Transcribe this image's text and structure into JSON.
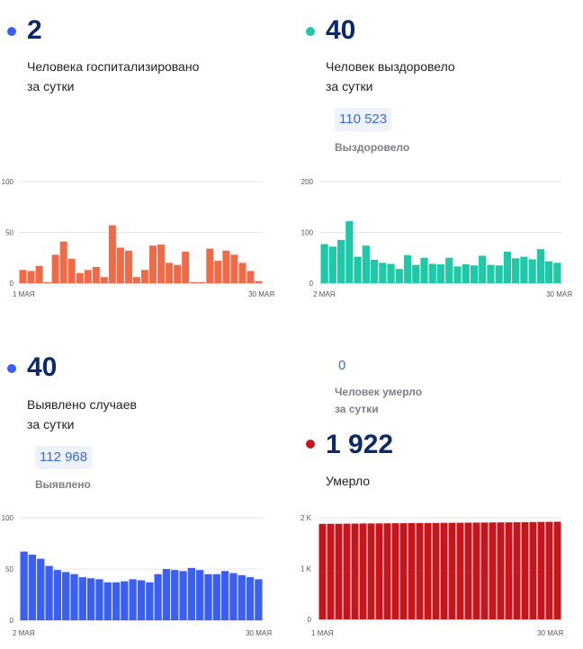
{
  "colors": {
    "orange": "#f06a47",
    "teal": "#1fc8a6",
    "blue": "#3a5ff2",
    "red": "#c4161c",
    "dark_navy": "#0e2a66",
    "chip_text": "#3c6ad6",
    "chip_bg": "#edf2fb",
    "muted": "#7b7f86"
  },
  "hospitalized": {
    "value": "2",
    "caption_line1": "Человека госпитализировано",
    "caption_line2": "за сутки"
  },
  "recovered": {
    "value": "40",
    "caption_line1": "Человек выздоровело",
    "caption_line2": "за сутки",
    "total": "110 523",
    "total_label": "Выздоровело"
  },
  "detected": {
    "value": "40",
    "caption_line1": "Выявлено случаев",
    "caption_line2": "за сутки",
    "total": "112 968",
    "total_label": "Выявлено"
  },
  "deaths": {
    "daily_value": "0",
    "daily_caption_line1": "Человек умерло",
    "daily_caption_line2": "за сутки",
    "value": "1 922",
    "caption": "Умерло"
  },
  "chart_data": [
    {
      "id": "hospitalized",
      "type": "bar",
      "color": "#f06a47",
      "x_start_label": "1 МАЯ",
      "x_end_label": "30 МАЯ",
      "yticks": [
        "100",
        "50",
        "0"
      ],
      "ylim": [
        0,
        100
      ],
      "values": [
        13,
        12,
        17,
        1,
        28,
        41,
        24,
        10,
        13,
        16,
        6,
        57,
        35,
        32,
        6,
        13,
        37,
        38,
        20,
        18,
        31,
        1,
        1,
        34,
        22,
        32,
        28,
        20,
        12,
        2
      ]
    },
    {
      "id": "recovered",
      "type": "bar",
      "color": "#1fc8a6",
      "x_start_label": "2 МАЯ",
      "x_end_label": "30 МАЯ",
      "yticks": [
        "200",
        "100",
        "0"
      ],
      "ylim": [
        0,
        200
      ],
      "values": [
        77,
        72,
        85,
        122,
        52,
        74,
        46,
        40,
        38,
        28,
        55,
        36,
        50,
        38,
        37,
        50,
        33,
        37,
        35,
        54,
        36,
        35,
        62,
        49,
        52,
        47,
        67,
        43,
        40
      ]
    },
    {
      "id": "detected",
      "type": "bar",
      "color": "#3a5ff2",
      "x_start_label": "2 МАЯ",
      "x_end_label": "30 МАЯ",
      "yticks": [
        "100",
        "50",
        "0"
      ],
      "ylim": [
        0,
        100
      ],
      "values": [
        67,
        64,
        60,
        53,
        49,
        47,
        45,
        42,
        41,
        40,
        37,
        37,
        38,
        40,
        39,
        37,
        45,
        50,
        49,
        48,
        51,
        49,
        45,
        45,
        48,
        46,
        44,
        42,
        40
      ]
    },
    {
      "id": "deaths",
      "type": "bar",
      "color": "#c4161c",
      "x_start_label": "1 МАЯ",
      "x_end_label": "30 МАЯ",
      "yticks": [
        "2 K",
        "1 K",
        "0"
      ],
      "ylim": [
        0,
        2000
      ],
      "values": [
        1880,
        1881,
        1882,
        1884,
        1885,
        1887,
        1888,
        1889,
        1891,
        1892,
        1893,
        1895,
        1896,
        1897,
        1898,
        1900,
        1901,
        1902,
        1904,
        1905,
        1906,
        1908,
        1909,
        1910,
        1912,
        1914,
        1916,
        1918,
        1920,
        1922
      ]
    }
  ]
}
